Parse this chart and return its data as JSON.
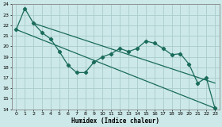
{
  "xlabel": "Humidex (Indice chaleur)",
  "bg_color": "#cce8e8",
  "grid_color": "#aacccc",
  "line_color": "#1a6b5a",
  "xlim": [
    -0.5,
    23.5
  ],
  "ylim": [
    14,
    24
  ],
  "yticks": [
    14,
    15,
    16,
    17,
    18,
    19,
    20,
    21,
    22,
    23,
    24
  ],
  "xticks": [
    0,
    1,
    2,
    3,
    4,
    5,
    6,
    7,
    8,
    9,
    10,
    11,
    12,
    13,
    14,
    15,
    16,
    17,
    18,
    19,
    20,
    21,
    22,
    23
  ],
  "series1_x": [
    0,
    1,
    2,
    3,
    4,
    5,
    6,
    7,
    8,
    9,
    10,
    11,
    12,
    13,
    14,
    15,
    16,
    17,
    18,
    19,
    20,
    21,
    22,
    23
  ],
  "series1_y": [
    21.6,
    23.6,
    22.2,
    21.3,
    20.7,
    19.5,
    18.2,
    17.5,
    17.5,
    18.5,
    19.0,
    19.3,
    19.8,
    19.5,
    19.8,
    20.5,
    20.3,
    19.8,
    19.2,
    19.3,
    18.3,
    16.5,
    17.0,
    14.1
  ],
  "series2_x": [
    0,
    23
  ],
  "series2_y": [
    21.6,
    14.1
  ],
  "series3_x": [
    2,
    23
  ],
  "series3_y": [
    22.2,
    16.5
  ]
}
